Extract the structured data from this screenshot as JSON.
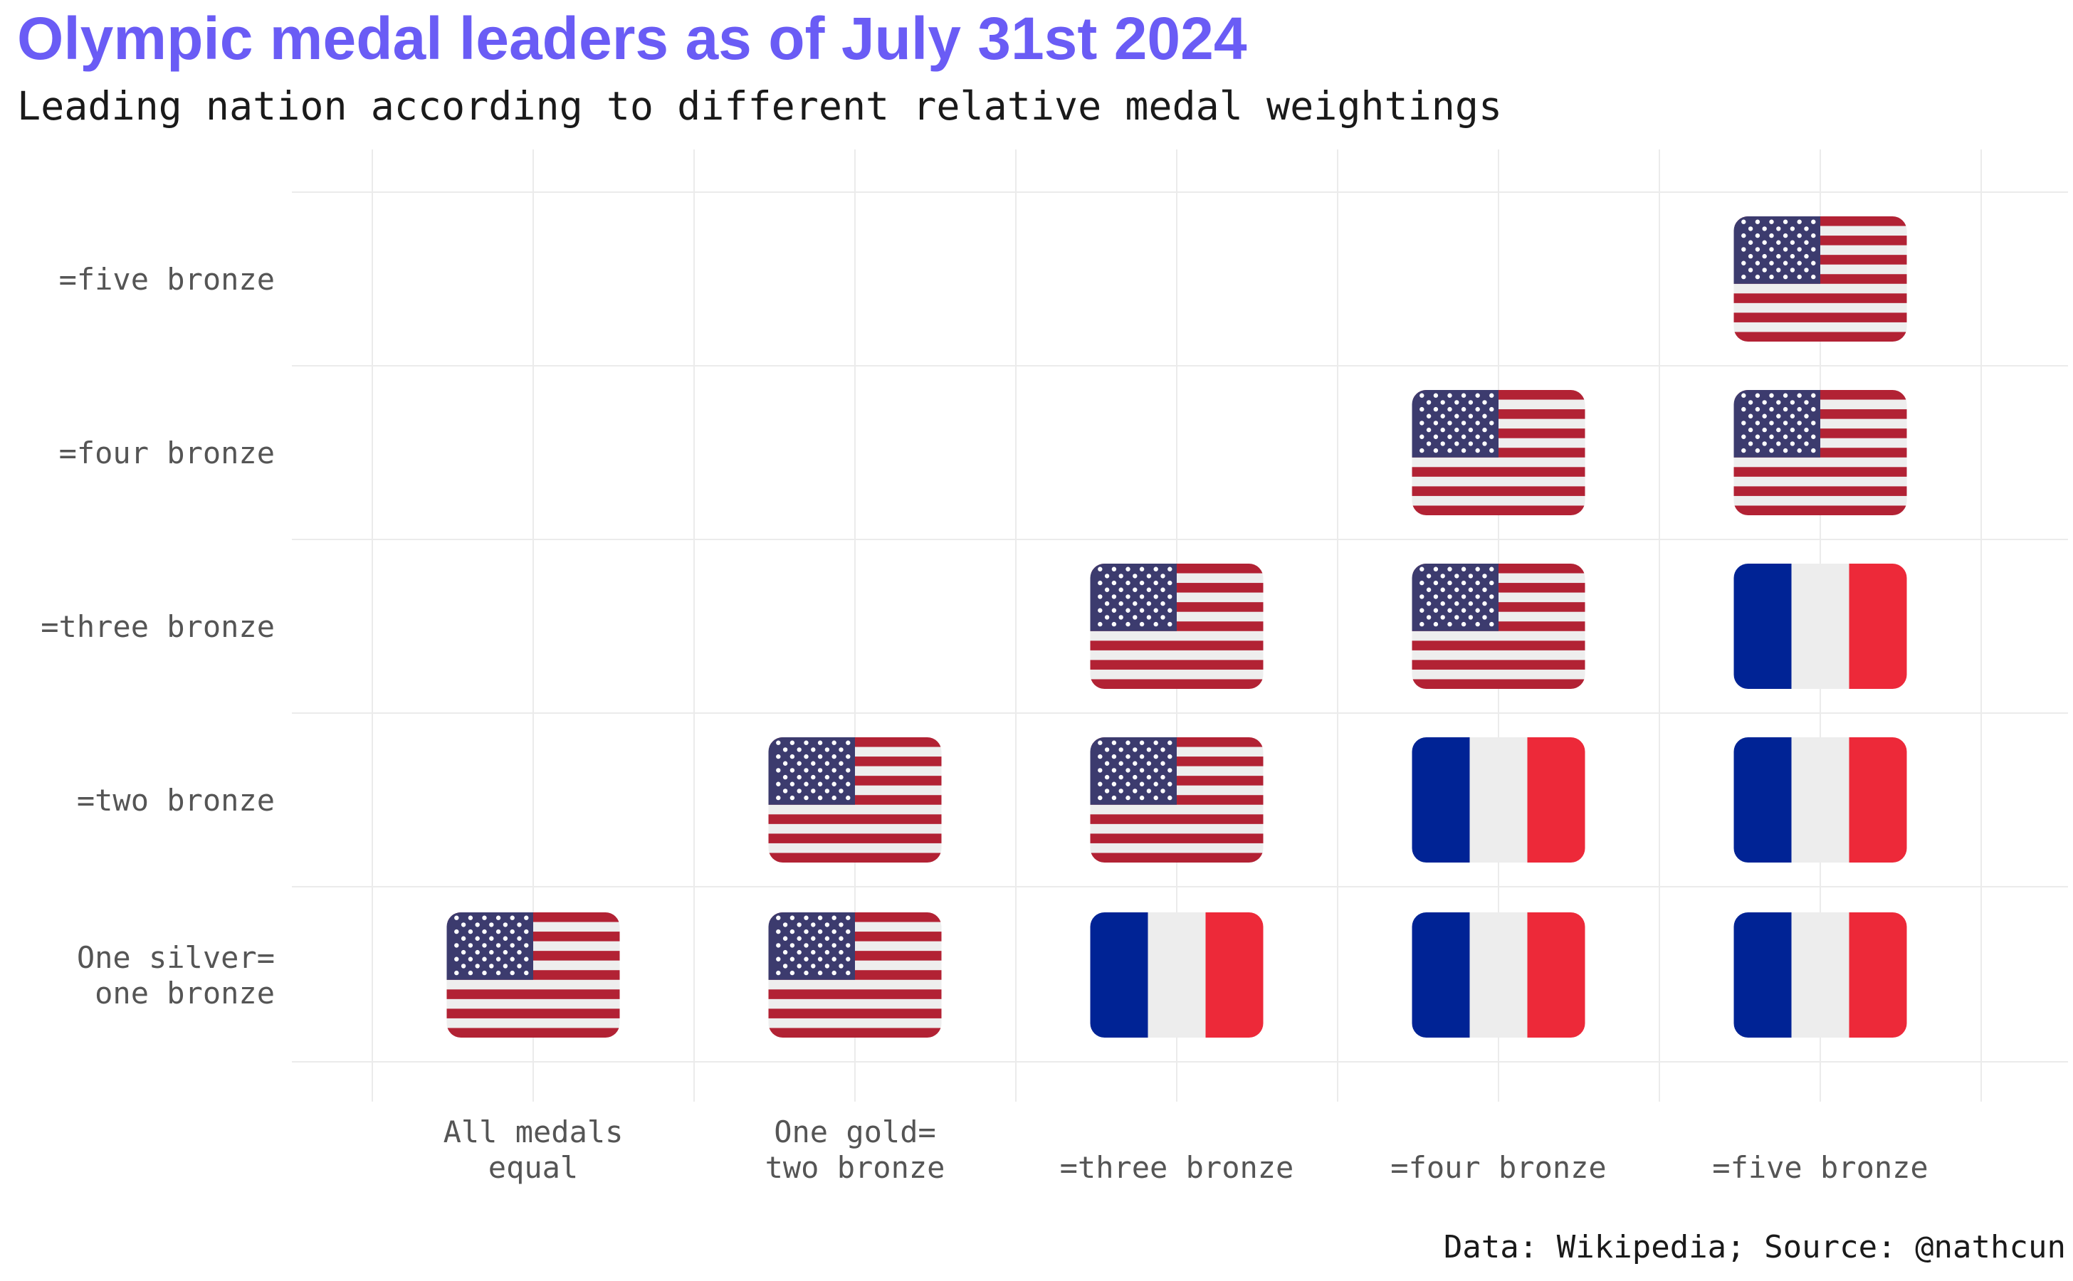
{
  "title": "Olympic medal leaders as of July 31st 2024",
  "subtitle": "Leading nation according to different relative medal weightings",
  "caption": "Data: Wikipedia; Source: @nathcun",
  "chart_data": {
    "type": "heatmap",
    "x_categories": [
      [
        "All medals",
        "equal"
      ],
      [
        "One gold=",
        "two bronze"
      ],
      [
        "=three bronze"
      ],
      [
        "=four bronze"
      ],
      [
        "=five bronze"
      ]
    ],
    "y_categories": [
      [
        "One silver=",
        "one bronze"
      ],
      [
        "=two bronze"
      ],
      [
        "=three bronze"
      ],
      [
        "=four bronze"
      ],
      [
        "=five bronze"
      ]
    ],
    "cells": [
      {
        "x": 0,
        "y": 0,
        "leader": "USA"
      },
      {
        "x": 1,
        "y": 0,
        "leader": "USA"
      },
      {
        "x": 1,
        "y": 1,
        "leader": "USA"
      },
      {
        "x": 2,
        "y": 0,
        "leader": "France"
      },
      {
        "x": 2,
        "y": 1,
        "leader": "USA"
      },
      {
        "x": 2,
        "y": 2,
        "leader": "USA"
      },
      {
        "x": 3,
        "y": 0,
        "leader": "France"
      },
      {
        "x": 3,
        "y": 1,
        "leader": "France"
      },
      {
        "x": 3,
        "y": 2,
        "leader": "USA"
      },
      {
        "x": 3,
        "y": 3,
        "leader": "USA"
      },
      {
        "x": 4,
        "y": 0,
        "leader": "France"
      },
      {
        "x": 4,
        "y": 1,
        "leader": "France"
      },
      {
        "x": 4,
        "y": 2,
        "leader": "France"
      },
      {
        "x": 4,
        "y": 3,
        "leader": "USA"
      },
      {
        "x": 4,
        "y": 4,
        "leader": "USA"
      }
    ],
    "grid": true,
    "colors": {
      "usa_blue": "#3c3b6e",
      "usa_red": "#b22234",
      "usa_white": "#eeeeee",
      "france_blue": "#002395",
      "france_white": "#ededed",
      "france_red": "#ed2939",
      "grid": "#ebebeb",
      "title": "#6a5cf5"
    }
  }
}
